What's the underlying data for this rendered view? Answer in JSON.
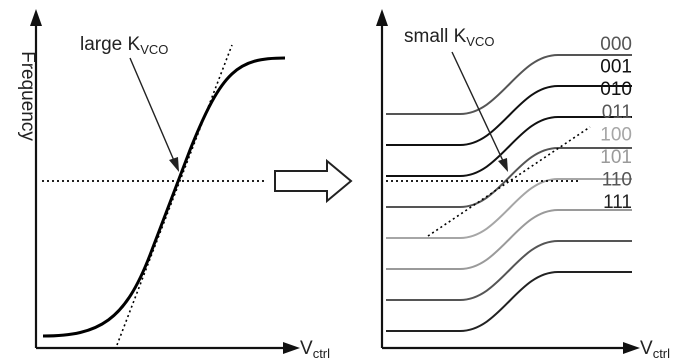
{
  "left_panel": {
    "y_axis_label": "Frequency",
    "x_axis_label": {
      "main": "V",
      "sub": "ctrl"
    },
    "annotation": {
      "main": "large K",
      "sub": "VCO"
    }
  },
  "right_panel": {
    "x_axis_label": {
      "main": "V",
      "sub": "ctrl"
    },
    "annotation": {
      "main": "small K",
      "sub": "VCO"
    },
    "band_codes": [
      {
        "code": "000",
        "color": "#555555"
      },
      {
        "code": "001",
        "color": "#111111"
      },
      {
        "code": "010",
        "color": "#111111"
      },
      {
        "code": "011",
        "color": "#555555"
      },
      {
        "code": "100",
        "color": "#a6a6a6"
      },
      {
        "code": "101",
        "color": "#9a9a9a"
      },
      {
        "code": "110",
        "color": "#555555"
      },
      {
        "code": "111",
        "color": "#222222"
      }
    ]
  },
  "transition_arrow": "right-arrow-icon",
  "colors": {
    "axis": "#111111",
    "curve": "#000000",
    "reference_line": "#000000"
  }
}
